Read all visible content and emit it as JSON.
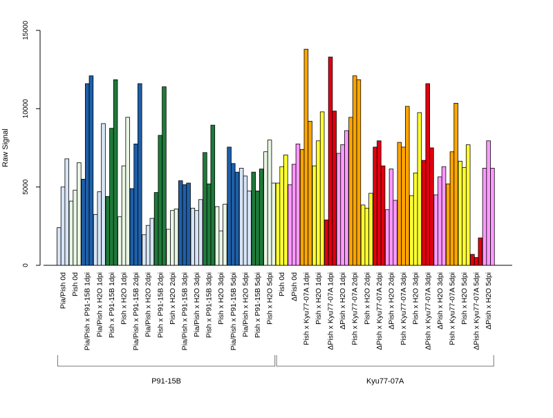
{
  "chart_data": {
    "type": "bar",
    "title": "",
    "xlabel": "",
    "ylabel": "Raw Signal",
    "ylim": [
      0,
      15000
    ],
    "yticks": [
      0,
      5000,
      10000,
      15000
    ],
    "grid": false,
    "categories": [
      "Pia/Pish 0d",
      "Pish 0d",
      "Pia/Pish x P91-15B 1dpi",
      "Pia/Pish x H2O 1dpi",
      "Pish x P91-15B 1dpi",
      "Pish x H2O 1dpi",
      "Pia/Pish x P91-15B 2dpi",
      "Pia/Pish x H2O 2dpi",
      "Pish x P91-15B 2dpi",
      "Pish x H2O 2dpi",
      "Pia/Pish x P91-15B 3dpi",
      "Pia/Pish x H2O 3dpi",
      "Pish x P91-15B 3dpi",
      "Pish x H2O 3dpi",
      "Pia/Pish x P91-15B 5dpi",
      "Pia/Pish x H2O 5dpi",
      "Pish x P91-15B 5dpi",
      "Pish x H2O 5dpi",
      "Pish 0d",
      "ΔPish 0d",
      "Pish x Kyu77-07A 1dpi",
      "Pish x H2O 1dpi",
      "ΔPish x Kyu77-07A 1dpi",
      "ΔPish x H2O 1dpi",
      "Pish x Kyu77-07A 2dpi",
      "Pish x H2O 2dpi",
      "ΔPish x Kyu77-07A 2dpi",
      "ΔPish x H2O 2dpi",
      "Pish x Kyu77-07A 3dpi",
      "Pish x H2O 3dpi",
      "ΔPish x Kyu77-07A 3dpi",
      "ΔPish x H2O 3dpi",
      "Pish x Kyu77-07A 5dpi",
      "Pish x H2O 5dpi",
      "ΔPish x Kyu77-07A 5dpi",
      "ΔPish x H2O 5dpi"
    ],
    "bar_colors": [
      "#d6e4f5",
      "#e9f5e4",
      "#1f5fa8",
      "#d6e4f5",
      "#1f7a3a",
      "#e9f5e4",
      "#1f5fa8",
      "#d6e4f5",
      "#1f7a3a",
      "#e9f5e4",
      "#1f5fa8",
      "#d6e4f5",
      "#1f7a3a",
      "#e9f5e4",
      "#1f5fa8",
      "#d6e4f5",
      "#1f7a3a",
      "#e9f5e4",
      "#ffff33",
      "#ff99ff",
      "#ffa500",
      "#ffff33",
      "#e00010",
      "#ff99ff",
      "#ffa500",
      "#ffff33",
      "#e00010",
      "#ff99ff",
      "#ffa500",
      "#ffff33",
      "#e00010",
      "#ff99ff",
      "#ffa500",
      "#ffff33",
      "#e00010",
      "#ff99ff"
    ],
    "values": [
      [
        2400,
        5000,
        6800
      ],
      [
        4100,
        4800,
        6550
      ],
      [
        5500,
        11600,
        12100
      ],
      [
        3250,
        4700,
        9050
      ],
      [
        4400,
        8750,
        11850
      ],
      [
        3100,
        6350,
        9450
      ],
      [
        4900,
        7750,
        11600
      ],
      [
        1950,
        2550,
        3000
      ],
      [
        4650,
        8300,
        11400
      ],
      [
        2300,
        3500,
        3600
      ],
      [
        5400,
        5150,
        5250
      ],
      [
        3650,
        3500,
        4200
      ],
      [
        7200,
        5200,
        8950
      ],
      [
        3750,
        2200,
        3900
      ],
      [
        7550,
        6500,
        5950
      ],
      [
        6200,
        5700,
        4750
      ],
      [
        5950,
        4750,
        6150
      ],
      [
        7250,
        8000,
        5250
      ],
      [
        5250,
        6300,
        7050
      ],
      [
        5150,
        6450,
        7750
      ],
      [
        7400,
        13800,
        9200
      ],
      [
        6350,
        7950,
        9800
      ],
      [
        2900,
        13300,
        9850
      ],
      [
        7150,
        7700,
        8600
      ],
      [
        9450,
        12100,
        11850
      ],
      [
        3850,
        3650,
        4600
      ],
      [
        7550,
        7950,
        6350
      ],
      [
        3550,
        6150,
        4150
      ],
      [
        7850,
        7550,
        10150
      ],
      [
        4450,
        5900,
        9750
      ],
      [
        6700,
        11600,
        7500
      ],
      [
        4500,
        5650,
        6300
      ],
      [
        5200,
        7250,
        10350
      ],
      [
        6650,
        6250,
        7700
      ],
      [
        700,
        500,
        1750
      ],
      [
        6200,
        7950,
        6200
      ]
    ],
    "groups": [
      {
        "label": "P91-15B",
        "from": 0,
        "to": 17
      },
      {
        "label": "Kyu77-07A",
        "from": 18,
        "to": 35
      }
    ]
  }
}
